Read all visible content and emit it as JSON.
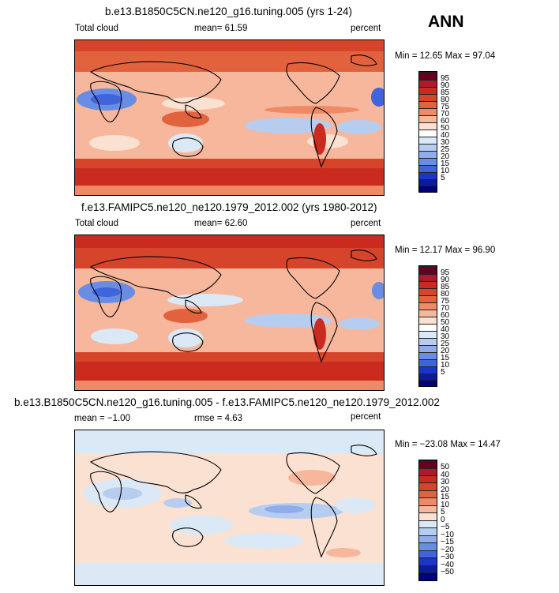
{
  "season": "ANN",
  "panels": [
    {
      "title": "b.e13.B1850C5CN.ne120_g16.tuning.005 (yrs 1-24)",
      "left_label": "Total cloud",
      "center_label": "mean=  61.59",
      "right_label": "percent",
      "minmax": "Min =  12.65 Max =  97.04",
      "kind": "abs",
      "colorbar_labels": [
        "95",
        "90",
        "85",
        "80",
        "75",
        "70",
        "60",
        "50",
        "40",
        "30",
        "25",
        "20",
        "15",
        "10",
        "5"
      ]
    },
    {
      "title": "f.e13.FAMIPC5.ne120_ne120.1979_2012.002 (yrs 1980-2012)",
      "left_label": "Total cloud",
      "center_label": "mean=  62.60",
      "right_label": "percent",
      "minmax": "Min =  12.17 Max =  96.90",
      "kind": "abs",
      "colorbar_labels": [
        "95",
        "90",
        "85",
        "80",
        "75",
        "70",
        "60",
        "50",
        "40",
        "30",
        "25",
        "20",
        "15",
        "10",
        "5"
      ]
    },
    {
      "title": "b.e13.B1850C5CN.ne120_g16.tuning.005 - f.e13.FAMIPC5.ne120_ne120.1979_2012.002",
      "left_label": "mean =  −1.00",
      "center_label": "rmse =   4.63",
      "right_label": "percent",
      "minmax": "Min = −23.08 Max =  14.47",
      "kind": "diff",
      "colorbar_labels": [
        "50",
        "40",
        "30",
        "20",
        "15",
        "10",
        "5",
        "0",
        "−5",
        "−10",
        "−15",
        "−20",
        "−30",
        "−40",
        "−50"
      ]
    }
  ],
  "colors": {
    "abs_scale": [
      "#67001f",
      "#b2182b",
      "#cb2b1f",
      "#d6452b",
      "#e3623e",
      "#f08a66",
      "#f6b79c",
      "#fbe1d2",
      "#ffffff",
      "#dbe8f6",
      "#b7cdef",
      "#90acea",
      "#6a8de4",
      "#3f64dc",
      "#1936c6",
      "#0b1b9e",
      "#000080"
    ],
    "diff_scale": [
      "#67001f",
      "#b2182b",
      "#cb2b1f",
      "#d6452b",
      "#e3623e",
      "#f08a66",
      "#f6b79c",
      "#fbe1d2",
      "#dbe8f6",
      "#b7cdef",
      "#90acea",
      "#6a8de4",
      "#3f64dc",
      "#1936c6",
      "#0b1b9e",
      "#000080"
    ]
  }
}
